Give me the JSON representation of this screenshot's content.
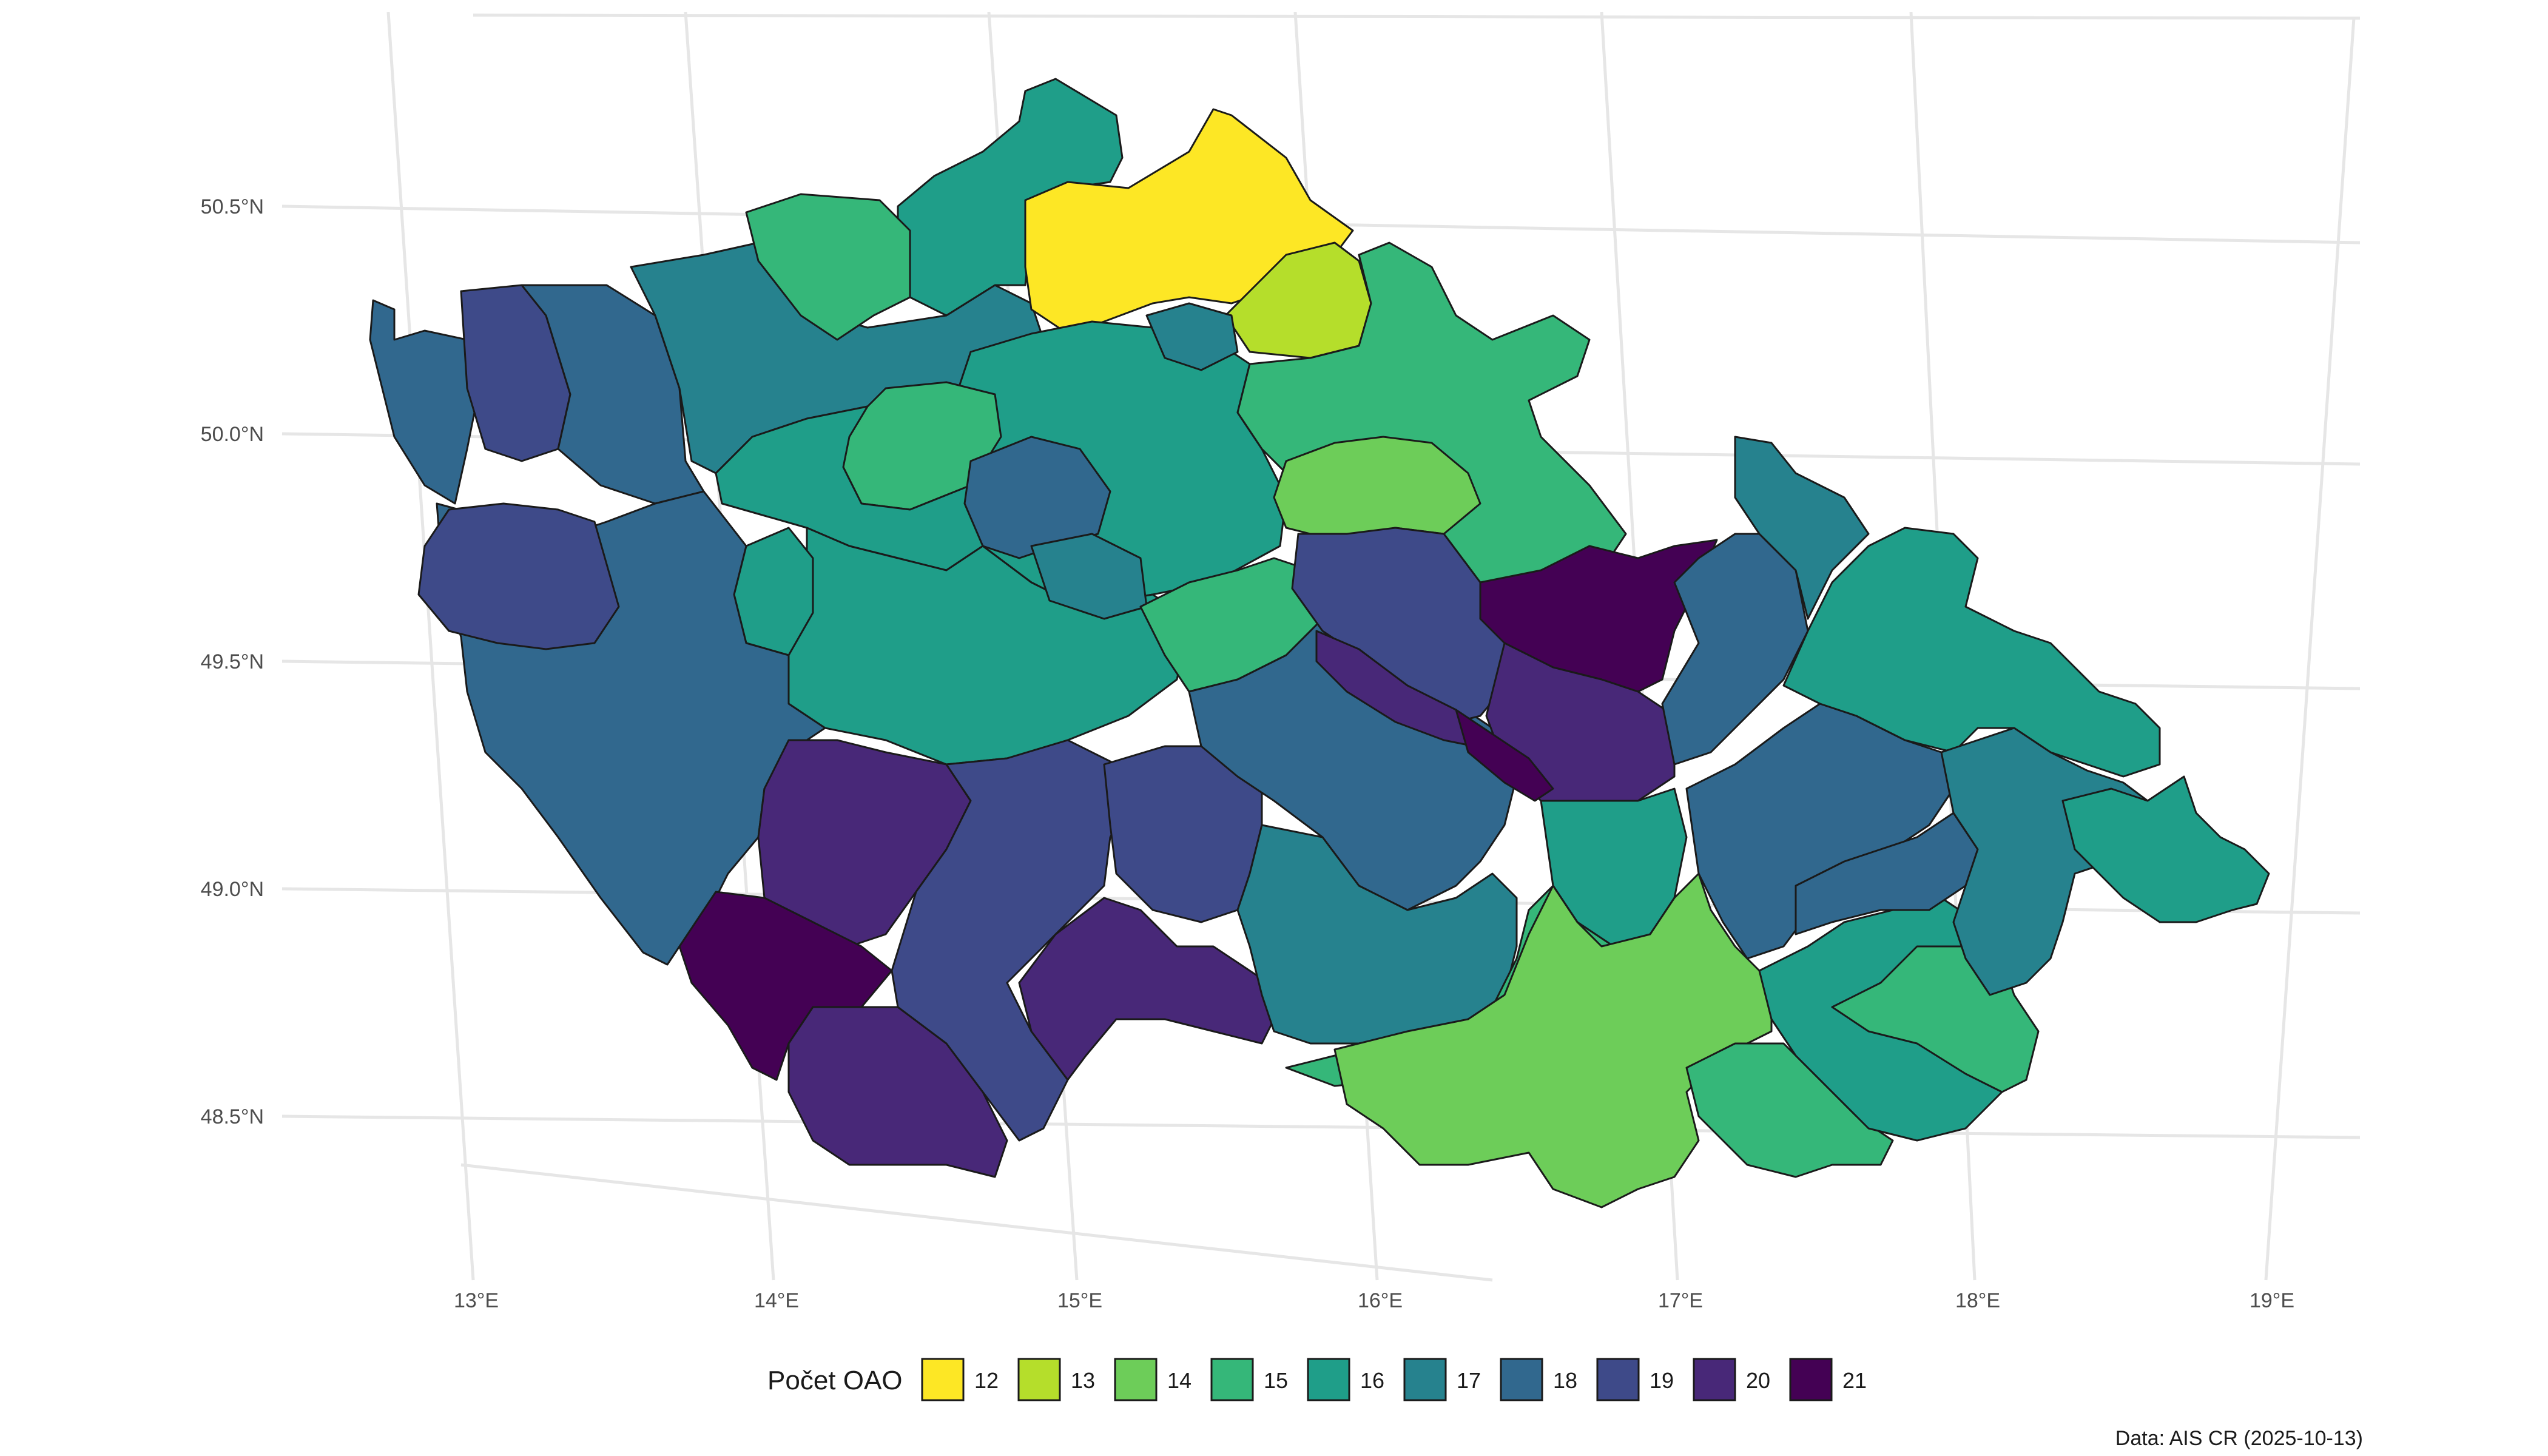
{
  "map": {
    "legend_title": "Počet OAO",
    "caption": "Data: AIS CR (2025-10-13)",
    "lon_labels": [
      "13°E",
      "14°E",
      "15°E",
      "16°E",
      "17°E",
      "18°E",
      "19°E"
    ],
    "lat_labels": [
      "50.5°N",
      "50.0°N",
      "49.5°N",
      "49.0°N",
      "48.5°N"
    ],
    "legend": [
      {
        "value": "12",
        "color": "#FDE725"
      },
      {
        "value": "13",
        "color": "#B5DE2B"
      },
      {
        "value": "14",
        "color": "#6DCD59"
      },
      {
        "value": "15",
        "color": "#35B779"
      },
      {
        "value": "16",
        "color": "#1F9E89"
      },
      {
        "value": "17",
        "color": "#26828E"
      },
      {
        "value": "18",
        "color": "#31688E"
      },
      {
        "value": "19",
        "color": "#3E4A89"
      },
      {
        "value": "20",
        "color": "#482878"
      },
      {
        "value": "21",
        "color": "#440154"
      }
    ]
  }
}
